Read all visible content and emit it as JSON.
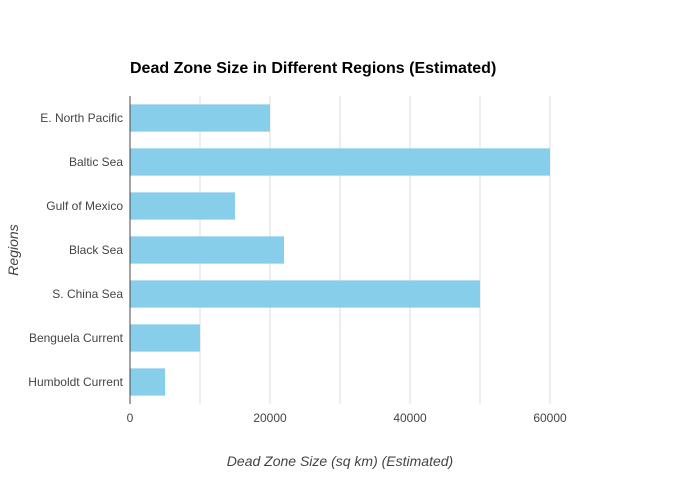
{
  "chart_data": {
    "type": "bar",
    "orientation": "horizontal",
    "title": "Dead Zone Size in Different Regions (Estimated)",
    "xlabel": "Dead Zone Size (sq km) (Estimated)",
    "ylabel": "Regions",
    "categories": [
      "E. North Pacific",
      "Baltic Sea",
      "Gulf of Mexico",
      "Black Sea",
      "S. China Sea",
      "Benguela Current",
      "Humboldt Current"
    ],
    "values": [
      20000,
      60000,
      15000,
      22000,
      50000,
      10000,
      5000
    ],
    "xlim": [
      0,
      70000
    ],
    "xticks": [
      0,
      20000,
      40000,
      60000
    ],
    "gridlines": [
      10000,
      20000,
      30000,
      40000,
      50000,
      60000
    ],
    "grid": true,
    "legend": "none",
    "colors": {
      "bar": "#87ceeb",
      "grid": "#dddddd",
      "axis": "#444444"
    }
  }
}
